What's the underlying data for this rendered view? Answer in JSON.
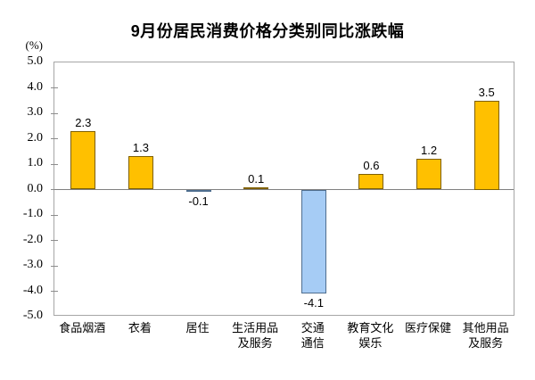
{
  "page": {
    "background": "#ffffff"
  },
  "chart_data": {
    "type": "bar",
    "title": "9月份居民消费价格分类别同比涨跌幅",
    "unit_label": "(%)",
    "categories": [
      "食品烟酒",
      "衣着",
      "居住",
      "生活用品及服务",
      "交通通信",
      "教育文化娱乐",
      "医疗保健",
      "其他用品及服务"
    ],
    "category_label_lines": [
      [
        "食品烟酒"
      ],
      [
        "衣着"
      ],
      [
        "居住"
      ],
      [
        "生活用品",
        "及服务"
      ],
      [
        "交通",
        "通信"
      ],
      [
        "教育文化",
        "娱乐"
      ],
      [
        "医疗保健"
      ],
      [
        "其他用品",
        "及服务"
      ]
    ],
    "values": [
      2.3,
      1.3,
      -0.1,
      0.1,
      -4.1,
      0.6,
      1.2,
      3.5
    ],
    "value_labels": [
      "2.3",
      "1.3",
      "-0.1",
      "0.1",
      "-4.1",
      "0.6",
      "1.2",
      "3.5"
    ],
    "ylabel": "(%)",
    "xlabel": "",
    "ylim": [
      -5.0,
      5.0
    ],
    "ytick_step": 1.0,
    "ytick_labels": [
      "5.0",
      "4.0",
      "3.0",
      "2.0",
      "1.0",
      "0.0",
      "-1.0",
      "-2.0",
      "-3.0",
      "-4.0",
      "-5.0"
    ],
    "grid": false,
    "legend": "none",
    "colors": {
      "positive_fill": "#FFC000",
      "positive_border": "#7F6000",
      "negative_fill": "#A6CCF5",
      "negative_border": "#4F6E8F",
      "zero_line": "#808080",
      "plot_border": "#A6A6A6",
      "text": "#000000"
    }
  }
}
